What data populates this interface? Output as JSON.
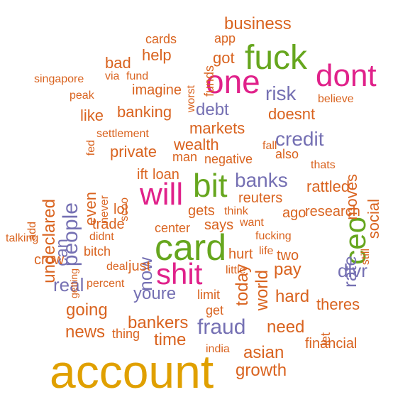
{
  "palette": {
    "orange": "#d9631f",
    "gold": "#e0a000",
    "magenta": "#e0218a",
    "green": "#66a61e",
    "slate": "#7570b3"
  },
  "words": [
    {
      "text": "account",
      "color": "gold"
    },
    {
      "text": "card",
      "color": "green"
    },
    {
      "text": "fuck",
      "color": "green"
    },
    {
      "text": "one",
      "color": "magenta"
    },
    {
      "text": "dont",
      "color": "magenta"
    },
    {
      "text": "bit",
      "color": "green"
    },
    {
      "text": "will",
      "color": "magenta"
    },
    {
      "text": "shit",
      "color": "magenta"
    },
    {
      "text": "ceo",
      "color": "green"
    },
    {
      "text": "risk",
      "color": "slate"
    },
    {
      "text": "credit",
      "color": "slate"
    },
    {
      "text": "banks",
      "color": "slate"
    },
    {
      "text": "people",
      "color": "slate"
    },
    {
      "text": "fraud",
      "color": "slate"
    },
    {
      "text": "debt",
      "color": "slate"
    },
    {
      "text": "rate",
      "color": "slate"
    },
    {
      "text": "dlvr",
      "color": "slate"
    },
    {
      "text": "now",
      "color": "slate"
    },
    {
      "text": "can",
      "color": "slate"
    },
    {
      "text": "youre",
      "color": "slate"
    },
    {
      "text": "real",
      "color": "slate"
    },
    {
      "text": "business",
      "color": "orange"
    },
    {
      "text": "banking",
      "color": "orange"
    },
    {
      "text": "doesnt",
      "color": "orange"
    },
    {
      "text": "markets",
      "color": "orange"
    },
    {
      "text": "wealth",
      "color": "orange"
    },
    {
      "text": "private",
      "color": "orange"
    },
    {
      "text": "like",
      "color": "orange"
    },
    {
      "text": "help",
      "color": "orange"
    },
    {
      "text": "bad",
      "color": "orange"
    },
    {
      "text": "got",
      "color": "orange"
    },
    {
      "text": "imagine",
      "color": "orange"
    },
    {
      "text": "undeclared",
      "color": "orange"
    },
    {
      "text": "even",
      "color": "orange"
    },
    {
      "text": "moves",
      "color": "orange"
    },
    {
      "text": "social",
      "color": "orange"
    },
    {
      "text": "rattled",
      "color": "orange"
    },
    {
      "text": "research",
      "color": "orange"
    },
    {
      "text": "ago",
      "color": "orange"
    },
    {
      "text": "pay",
      "color": "orange"
    },
    {
      "text": "hard",
      "color": "orange"
    },
    {
      "text": "theres",
      "color": "orange"
    },
    {
      "text": "need",
      "color": "orange"
    },
    {
      "text": "asian",
      "color": "orange"
    },
    {
      "text": "growth",
      "color": "orange"
    },
    {
      "text": "financial",
      "color": "orange"
    },
    {
      "text": "world",
      "color": "orange"
    },
    {
      "text": "today",
      "color": "orange"
    },
    {
      "text": "bankers",
      "color": "orange"
    },
    {
      "text": "time",
      "color": "orange"
    },
    {
      "text": "news",
      "color": "orange"
    },
    {
      "text": "going",
      "color": "orange"
    },
    {
      "text": "thing",
      "color": "orange"
    },
    {
      "text": "get",
      "color": "orange"
    },
    {
      "text": "limit",
      "color": "orange"
    },
    {
      "text": "says",
      "color": "orange"
    },
    {
      "text": "center",
      "color": "orange"
    },
    {
      "text": "trade",
      "color": "orange"
    },
    {
      "text": "lol",
      "color": "orange"
    },
    {
      "text": "bitch",
      "color": "orange"
    },
    {
      "text": "crow",
      "color": "orange"
    },
    {
      "text": "just",
      "color": "orange"
    },
    {
      "text": "deal",
      "color": "orange"
    },
    {
      "text": "percent",
      "color": "orange"
    },
    {
      "text": "little",
      "color": "orange"
    },
    {
      "text": "hurt",
      "color": "orange"
    },
    {
      "text": "life",
      "color": "orange"
    },
    {
      "text": "two",
      "color": "orange"
    },
    {
      "text": "fucking",
      "color": "orange"
    },
    {
      "text": "want",
      "color": "orange"
    },
    {
      "text": "think",
      "color": "orange"
    },
    {
      "text": "gets",
      "color": "orange"
    },
    {
      "text": "reuters",
      "color": "orange"
    },
    {
      "text": "loan",
      "color": "orange"
    },
    {
      "text": "ift",
      "color": "orange"
    },
    {
      "text": "man",
      "color": "orange"
    },
    {
      "text": "negative",
      "color": "orange"
    },
    {
      "text": "also",
      "color": "orange"
    },
    {
      "text": "fall",
      "color": "orange"
    },
    {
      "text": "thats",
      "color": "orange"
    },
    {
      "text": "believe",
      "color": "orange"
    },
    {
      "text": "settlement",
      "color": "orange"
    },
    {
      "text": "fed",
      "color": "orange"
    },
    {
      "text": "never",
      "color": "orange"
    },
    {
      "text": "scoo",
      "color": "orange"
    },
    {
      "text": "add",
      "color": "orange"
    },
    {
      "text": "talking",
      "color": "orange"
    },
    {
      "text": "didnt",
      "color": "orange"
    },
    {
      "text": "getting",
      "color": "orange"
    },
    {
      "text": "still",
      "color": "orange"
    },
    {
      "text": "let",
      "color": "orange"
    },
    {
      "text": "india",
      "color": "orange"
    },
    {
      "text": "cards",
      "color": "orange"
    },
    {
      "text": "app",
      "color": "orange"
    },
    {
      "text": "funds",
      "color": "orange"
    },
    {
      "text": "worst",
      "color": "orange"
    },
    {
      "text": "fund",
      "color": "orange"
    },
    {
      "text": "via",
      "color": "orange"
    },
    {
      "text": "singapore",
      "color": "orange"
    },
    {
      "text": "peak",
      "color": "orange"
    }
  ]
}
